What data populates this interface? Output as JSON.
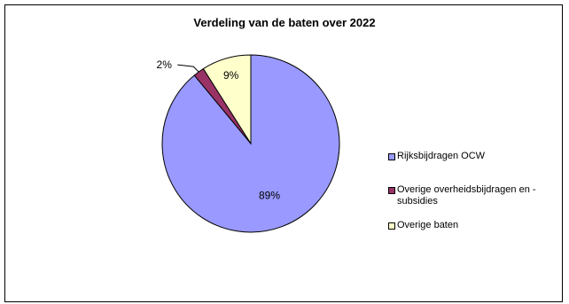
{
  "chart_data": {
    "type": "pie",
    "title": "Verdeling van de baten over 2022",
    "series": [
      {
        "name": "Rijksbijdragen OCW",
        "value": 89,
        "label": "89%",
        "color": "#9999FF"
      },
      {
        "name": "Overige overheidsbijdragen en -subsidies",
        "value": 2,
        "label": "2%",
        "color": "#993366"
      },
      {
        "name": "Overige baten",
        "value": 9,
        "label": "9%",
        "color": "#FFFFCC"
      }
    ],
    "legend": {
      "placement": "right",
      "items": [
        {
          "line1": "Rijksbijdragen OCW",
          "line2": ""
        },
        {
          "line1": "Overige overheidsbijdragen en -",
          "line2": "subsidies"
        },
        {
          "line1": "Overige baten",
          "line2": ""
        }
      ]
    }
  }
}
